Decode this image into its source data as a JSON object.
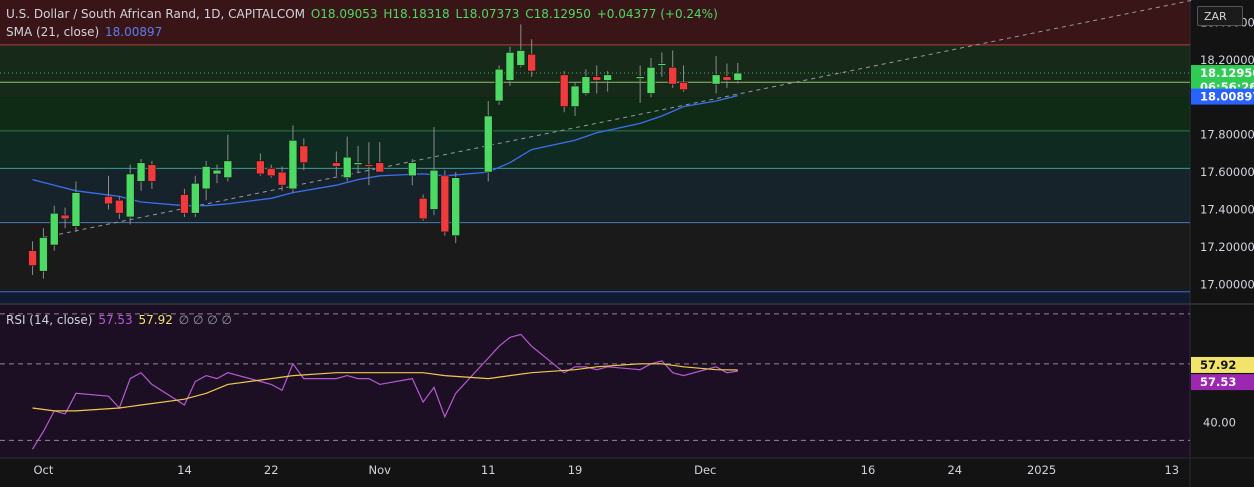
{
  "header": {
    "symbol": "U.S. Dollar / South African Rand, 1D, CAPITALCOM",
    "open": "O18.09053",
    "high": "H18.18318",
    "low": "L18.07373",
    "close": "C18.12950",
    "change": "+0.04377 (+0.24%)"
  },
  "sma_legend": {
    "label": "SMA (21, close)",
    "value": "18.00897"
  },
  "rsi_legend": {
    "label": "RSI (14, close)",
    "rsi": "57.53",
    "ma": "57.92",
    "extras": "∅ ∅ ∅ ∅"
  },
  "currency_button": "ZAR",
  "price_axis": {
    "labels": [
      "18.40000",
      "18.20000",
      "17.80000",
      "17.60000",
      "17.40000",
      "17.20000",
      "17.00000"
    ],
    "label_values": [
      18.4,
      18.2,
      17.8,
      17.6,
      17.4,
      17.2,
      17.0
    ],
    "last_price": "18.12950",
    "countdown": "06:56:26",
    "sma_price": "18.00897"
  },
  "rsi_axis": {
    "level_label": "40.00",
    "rsi_tag": "57.53",
    "ma_tag": "57.92"
  },
  "time_axis": {
    "labels": [
      "Oct",
      "14",
      "22",
      "Nov",
      "11",
      "19",
      "Dec",
      "16",
      "24",
      "2025",
      "13"
    ],
    "label_dates": [
      "2024-10-01",
      "2024-10-14",
      "2024-10-22",
      "2024-11-01",
      "2024-11-11",
      "2024-11-19",
      "2024-12-01",
      "2024-12-16",
      "2024-12-24",
      "2025-01-01",
      "2025-01-13"
    ]
  },
  "colors": {
    "up": "#4cd964",
    "down": "#ef3b3b",
    "sma": "#3b6ff0",
    "rsi": "#b65ad1",
    "rsi_ma": "#f2c94c"
  },
  "chart_data": {
    "type": "candlestick",
    "title": "U.S. Dollar / South African Rand, 1D, CAPITALCOM",
    "y_range": [
      16.9,
      18.52
    ],
    "zones": [
      {
        "from": 18.28,
        "to": 18.52,
        "color": "#3a1518"
      },
      {
        "from": 18.0,
        "to": 18.28,
        "color": "#172a19"
      },
      {
        "from": 17.82,
        "to": 18.0,
        "color": "#0f2a15"
      },
      {
        "from": 17.62,
        "to": 17.82,
        "color": "#0f2a20"
      },
      {
        "from": 17.33,
        "to": 17.62,
        "color": "#17232b"
      },
      {
        "from": 16.96,
        "to": 17.33,
        "color": "#1a1a1a"
      },
      {
        "from": 16.9,
        "to": 16.96,
        "color": "#101a33"
      }
    ],
    "levels": [
      {
        "value": 18.28,
        "color": "#b04040"
      },
      {
        "value": 18.08,
        "color": "#8fc06a"
      },
      {
        "value": 17.82,
        "color": "#2b7a4a"
      },
      {
        "value": 17.62,
        "color": "#3a9e8f"
      },
      {
        "value": 17.33,
        "color": "#4a7ba8"
      },
      {
        "value": 16.96,
        "color": "#3a6ad0"
      }
    ],
    "candles": [
      {
        "d": "2024-09-30",
        "o": 17.18,
        "h": 17.23,
        "l": 17.05,
        "c": 17.1
      },
      {
        "d": "2024-10-01",
        "o": 17.07,
        "h": 17.3,
        "l": 17.03,
        "c": 17.25
      },
      {
        "d": "2024-10-02",
        "o": 17.21,
        "h": 17.42,
        "l": 17.18,
        "c": 17.38
      },
      {
        "d": "2024-10-03",
        "o": 17.37,
        "h": 17.41,
        "l": 17.3,
        "c": 17.35
      },
      {
        "d": "2024-10-04",
        "o": 17.31,
        "h": 17.55,
        "l": 17.28,
        "c": 17.49
      },
      {
        "d": "2024-10-07",
        "o": 17.47,
        "h": 17.58,
        "l": 17.4,
        "c": 17.43
      },
      {
        "d": "2024-10-08",
        "o": 17.45,
        "h": 17.47,
        "l": 17.35,
        "c": 17.38
      },
      {
        "d": "2024-10-09",
        "o": 17.36,
        "h": 17.64,
        "l": 17.32,
        "c": 17.59
      },
      {
        "d": "2024-10-10",
        "o": 17.55,
        "h": 17.67,
        "l": 17.5,
        "c": 17.65
      },
      {
        "d": "2024-10-11",
        "o": 17.64,
        "h": 17.66,
        "l": 17.51,
        "c": 17.55
      },
      {
        "d": "2024-10-14",
        "o": 17.48,
        "h": 17.51,
        "l": 17.36,
        "c": 17.38
      },
      {
        "d": "2024-10-15",
        "o": 17.38,
        "h": 17.58,
        "l": 17.36,
        "c": 17.54
      },
      {
        "d": "2024-10-16",
        "o": 17.51,
        "h": 17.66,
        "l": 17.45,
        "c": 17.63
      },
      {
        "d": "2024-10-17",
        "o": 17.59,
        "h": 17.64,
        "l": 17.54,
        "c": 17.61
      },
      {
        "d": "2024-10-18",
        "o": 17.57,
        "h": 17.8,
        "l": 17.55,
        "c": 17.66
      },
      {
        "d": "2024-10-21",
        "o": 17.66,
        "h": 17.7,
        "l": 17.58,
        "c": 17.59
      },
      {
        "d": "2024-10-22",
        "o": 17.62,
        "h": 17.64,
        "l": 17.57,
        "c": 17.58
      },
      {
        "d": "2024-10-23",
        "o": 17.6,
        "h": 17.63,
        "l": 17.5,
        "c": 17.53
      },
      {
        "d": "2024-10-24",
        "o": 17.51,
        "h": 17.85,
        "l": 17.49,
        "c": 17.77
      },
      {
        "d": "2024-10-25",
        "o": 17.74,
        "h": 17.78,
        "l": 17.61,
        "c": 17.65
      },
      {
        "d": "2024-10-28",
        "o": 17.65,
        "h": 17.71,
        "l": 17.58,
        "c": 17.63
      },
      {
        "d": "2024-10-29",
        "o": 17.57,
        "h": 17.79,
        "l": 17.55,
        "c": 17.68
      },
      {
        "d": "2024-10-30",
        "o": 17.64,
        "h": 17.74,
        "l": 17.6,
        "c": 17.65
      },
      {
        "d": "2024-10-31",
        "o": 17.64,
        "h": 17.76,
        "l": 17.53,
        "c": 17.63
      },
      {
        "d": "2024-11-01",
        "o": 17.65,
        "h": 17.76,
        "l": 17.6,
        "c": 17.6
      },
      {
        "d": "2024-11-04",
        "o": 17.58,
        "h": 17.67,
        "l": 17.53,
        "c": 17.65
      },
      {
        "d": "2024-11-05",
        "o": 17.46,
        "h": 17.48,
        "l": 17.34,
        "c": 17.35
      },
      {
        "d": "2024-11-06",
        "o": 17.4,
        "h": 17.84,
        "l": 17.37,
        "c": 17.61
      },
      {
        "d": "2024-11-07",
        "o": 17.58,
        "h": 17.61,
        "l": 17.26,
        "c": 17.28
      },
      {
        "d": "2024-11-08",
        "o": 17.26,
        "h": 17.6,
        "l": 17.22,
        "c": 17.57
      },
      {
        "d": "2024-11-11",
        "o": 17.6,
        "h": 17.98,
        "l": 17.55,
        "c": 17.9
      },
      {
        "d": "2024-11-12",
        "o": 17.98,
        "h": 18.17,
        "l": 17.96,
        "c": 18.15
      },
      {
        "d": "2024-11-13",
        "o": 18.09,
        "h": 18.27,
        "l": 18.06,
        "c": 18.24
      },
      {
        "d": "2024-11-14",
        "o": 18.17,
        "h": 18.39,
        "l": 18.16,
        "c": 18.25
      },
      {
        "d": "2024-11-15",
        "o": 18.23,
        "h": 18.31,
        "l": 18.11,
        "c": 18.14
      },
      {
        "d": "2024-11-18",
        "o": 18.12,
        "h": 18.14,
        "l": 17.92,
        "c": 17.95
      },
      {
        "d": "2024-11-19",
        "o": 17.95,
        "h": 18.08,
        "l": 17.9,
        "c": 18.06
      },
      {
        "d": "2024-11-20",
        "o": 18.02,
        "h": 18.15,
        "l": 18.01,
        "c": 18.11
      },
      {
        "d": "2024-11-21",
        "o": 18.11,
        "h": 18.17,
        "l": 18.02,
        "c": 18.09
      },
      {
        "d": "2024-11-22",
        "o": 18.09,
        "h": 18.14,
        "l": 18.03,
        "c": 18.12
      },
      {
        "d": "2024-11-25",
        "o": 18.1,
        "h": 18.17,
        "l": 17.97,
        "c": 18.11
      },
      {
        "d": "2024-11-26",
        "o": 18.02,
        "h": 18.21,
        "l": 18.0,
        "c": 18.16
      },
      {
        "d": "2024-11-27",
        "o": 18.17,
        "h": 18.24,
        "l": 18.11,
        "c": 18.18
      },
      {
        "d": "2024-11-28",
        "o": 18.16,
        "h": 18.25,
        "l": 18.05,
        "c": 18.07
      },
      {
        "d": "2024-11-29",
        "o": 18.08,
        "h": 18.17,
        "l": 18.03,
        "c": 18.04
      },
      {
        "d": "2024-12-02",
        "o": 18.07,
        "h": 18.22,
        "l": 18.02,
        "c": 18.12
      },
      {
        "d": "2024-12-03",
        "o": 18.11,
        "h": 18.18,
        "l": 18.05,
        "c": 18.09
      },
      {
        "d": "2024-12-04",
        "o": 18.09053,
        "h": 18.18318,
        "l": 18.07373,
        "c": 18.1295
      }
    ],
    "sma": [
      {
        "d": "2024-09-30",
        "v": 17.56
      },
      {
        "d": "2024-10-02",
        "v": 17.53
      },
      {
        "d": "2024-10-04",
        "v": 17.5
      },
      {
        "d": "2024-10-08",
        "v": 17.47
      },
      {
        "d": "2024-10-10",
        "v": 17.44
      },
      {
        "d": "2024-10-14",
        "v": 17.42
      },
      {
        "d": "2024-10-16",
        "v": 17.42
      },
      {
        "d": "2024-10-18",
        "v": 17.43
      },
      {
        "d": "2024-10-22",
        "v": 17.46
      },
      {
        "d": "2024-10-24",
        "v": 17.49
      },
      {
        "d": "2024-10-28",
        "v": 17.53
      },
      {
        "d": "2024-10-30",
        "v": 17.56
      },
      {
        "d": "2024-11-01",
        "v": 17.58
      },
      {
        "d": "2024-11-05",
        "v": 17.59
      },
      {
        "d": "2024-11-07",
        "v": 17.58
      },
      {
        "d": "2024-11-11",
        "v": 17.6
      },
      {
        "d": "2024-11-13",
        "v": 17.65
      },
      {
        "d": "2024-11-15",
        "v": 17.72
      },
      {
        "d": "2024-11-19",
        "v": 17.77
      },
      {
        "d": "2024-11-21",
        "v": 17.81
      },
      {
        "d": "2024-11-25",
        "v": 17.86
      },
      {
        "d": "2024-11-27",
        "v": 17.9
      },
      {
        "d": "2024-11-29",
        "v": 17.95
      },
      {
        "d": "2024-12-02",
        "v": 17.98
      },
      {
        "d": "2024-12-04",
        "v": 18.00897
      }
    ],
    "trendline": [
      {
        "d": "2024-10-01",
        "v": 17.25
      },
      {
        "d": "2025-01-15",
        "v": 18.52
      }
    ],
    "rsi_panel": {
      "y_range": [
        28,
        80
      ],
      "dashed_levels": [
        77,
        60,
        34
      ],
      "level_label_value": 40,
      "rsi": [
        {
          "d": "2024-09-30",
          "v": 31
        },
        {
          "d": "2024-10-01",
          "v": 37
        },
        {
          "d": "2024-10-02",
          "v": 44
        },
        {
          "d": "2024-10-03",
          "v": 43
        },
        {
          "d": "2024-10-04",
          "v": 50
        },
        {
          "d": "2024-10-07",
          "v": 49
        },
        {
          "d": "2024-10-08",
          "v": 45
        },
        {
          "d": "2024-10-09",
          "v": 55
        },
        {
          "d": "2024-10-10",
          "v": 57
        },
        {
          "d": "2024-10-11",
          "v": 53
        },
        {
          "d": "2024-10-14",
          "v": 46
        },
        {
          "d": "2024-10-15",
          "v": 54
        },
        {
          "d": "2024-10-16",
          "v": 56
        },
        {
          "d": "2024-10-17",
          "v": 55
        },
        {
          "d": "2024-10-18",
          "v": 57
        },
        {
          "d": "2024-10-21",
          "v": 54
        },
        {
          "d": "2024-10-22",
          "v": 53
        },
        {
          "d": "2024-10-23",
          "v": 51
        },
        {
          "d": "2024-10-24",
          "v": 60
        },
        {
          "d": "2024-10-25",
          "v": 55
        },
        {
          "d": "2024-10-28",
          "v": 55
        },
        {
          "d": "2024-10-29",
          "v": 56
        },
        {
          "d": "2024-10-30",
          "v": 55
        },
        {
          "d": "2024-10-31",
          "v": 55
        },
        {
          "d": "2024-11-01",
          "v": 53
        },
        {
          "d": "2024-11-04",
          "v": 55
        },
        {
          "d": "2024-11-05",
          "v": 47
        },
        {
          "d": "2024-11-06",
          "v": 52
        },
        {
          "d": "2024-11-07",
          "v": 42
        },
        {
          "d": "2024-11-08",
          "v": 50
        },
        {
          "d": "2024-11-11",
          "v": 62
        },
        {
          "d": "2024-11-12",
          "v": 66
        },
        {
          "d": "2024-11-13",
          "v": 69
        },
        {
          "d": "2024-11-14",
          "v": 70
        },
        {
          "d": "2024-11-15",
          "v": 66
        },
        {
          "d": "2024-11-18",
          "v": 57
        },
        {
          "d": "2024-11-19",
          "v": 59
        },
        {
          "d": "2024-11-20",
          "v": 59
        },
        {
          "d": "2024-11-21",
          "v": 58
        },
        {
          "d": "2024-11-22",
          "v": 59
        },
        {
          "d": "2024-11-25",
          "v": 58
        },
        {
          "d": "2024-11-26",
          "v": 60
        },
        {
          "d": "2024-11-27",
          "v": 61
        },
        {
          "d": "2024-11-28",
          "v": 57
        },
        {
          "d": "2024-11-29",
          "v": 56
        },
        {
          "d": "2024-12-02",
          "v": 59
        },
        {
          "d": "2024-12-03",
          "v": 57
        },
        {
          "d": "2024-12-04",
          "v": 57.53
        }
      ],
      "rsi_ma": [
        {
          "d": "2024-09-30",
          "v": 45
        },
        {
          "d": "2024-10-02",
          "v": 44
        },
        {
          "d": "2024-10-04",
          "v": 44
        },
        {
          "d": "2024-10-08",
          "v": 45
        },
        {
          "d": "2024-10-10",
          "v": 46
        },
        {
          "d": "2024-10-14",
          "v": 48
        },
        {
          "d": "2024-10-16",
          "v": 50
        },
        {
          "d": "2024-10-18",
          "v": 53
        },
        {
          "d": "2024-10-22",
          "v": 55
        },
        {
          "d": "2024-10-24",
          "v": 56
        },
        {
          "d": "2024-10-28",
          "v": 57
        },
        {
          "d": "2024-10-30",
          "v": 57
        },
        {
          "d": "2024-11-01",
          "v": 57
        },
        {
          "d": "2024-11-05",
          "v": 57
        },
        {
          "d": "2024-11-07",
          "v": 56
        },
        {
          "d": "2024-11-11",
          "v": 55
        },
        {
          "d": "2024-11-13",
          "v": 56
        },
        {
          "d": "2024-11-15",
          "v": 57
        },
        {
          "d": "2024-11-19",
          "v": 58
        },
        {
          "d": "2024-11-21",
          "v": 59
        },
        {
          "d": "2024-11-25",
          "v": 60
        },
        {
          "d": "2024-11-27",
          "v": 60
        },
        {
          "d": "2024-11-29",
          "v": 59
        },
        {
          "d": "2024-12-02",
          "v": 58
        },
        {
          "d": "2024-12-04",
          "v": 57.92
        }
      ]
    }
  }
}
